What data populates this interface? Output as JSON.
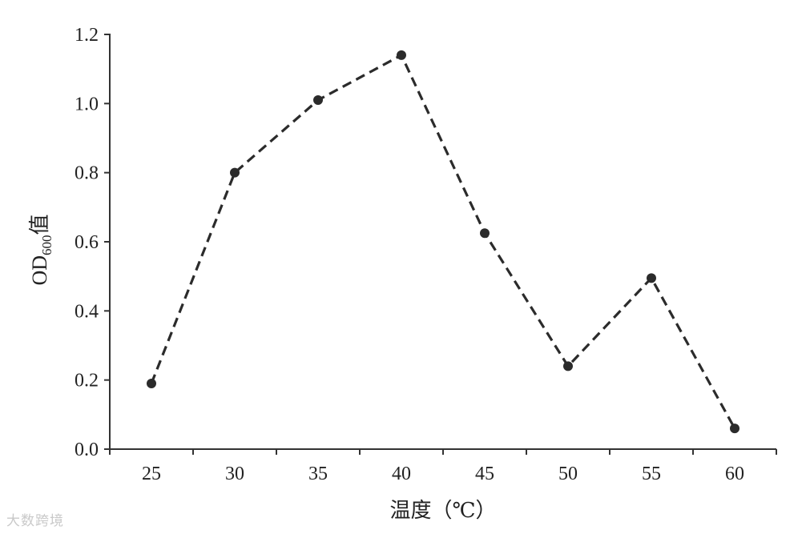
{
  "chart_data": {
    "type": "line",
    "xlabel": "温度（℃）",
    "ylabel_main": "OD",
    "ylabel_sub": "600",
    "ylabel_suffix": "值",
    "x_categories": [
      "25",
      "30",
      "35",
      "40",
      "45",
      "50",
      "55",
      "60"
    ],
    "values": [
      0.19,
      0.8,
      1.01,
      1.14,
      0.625,
      0.24,
      0.495,
      0.06
    ],
    "ylim": [
      0,
      1.2
    ],
    "yticks": [
      "0.0",
      "0.2",
      "0.4",
      "0.6",
      "0.8",
      "1.0",
      "1.2"
    ],
    "grid": false,
    "line_style": "dashed",
    "color": "#2b2b2b"
  },
  "watermark": "大数跨境"
}
